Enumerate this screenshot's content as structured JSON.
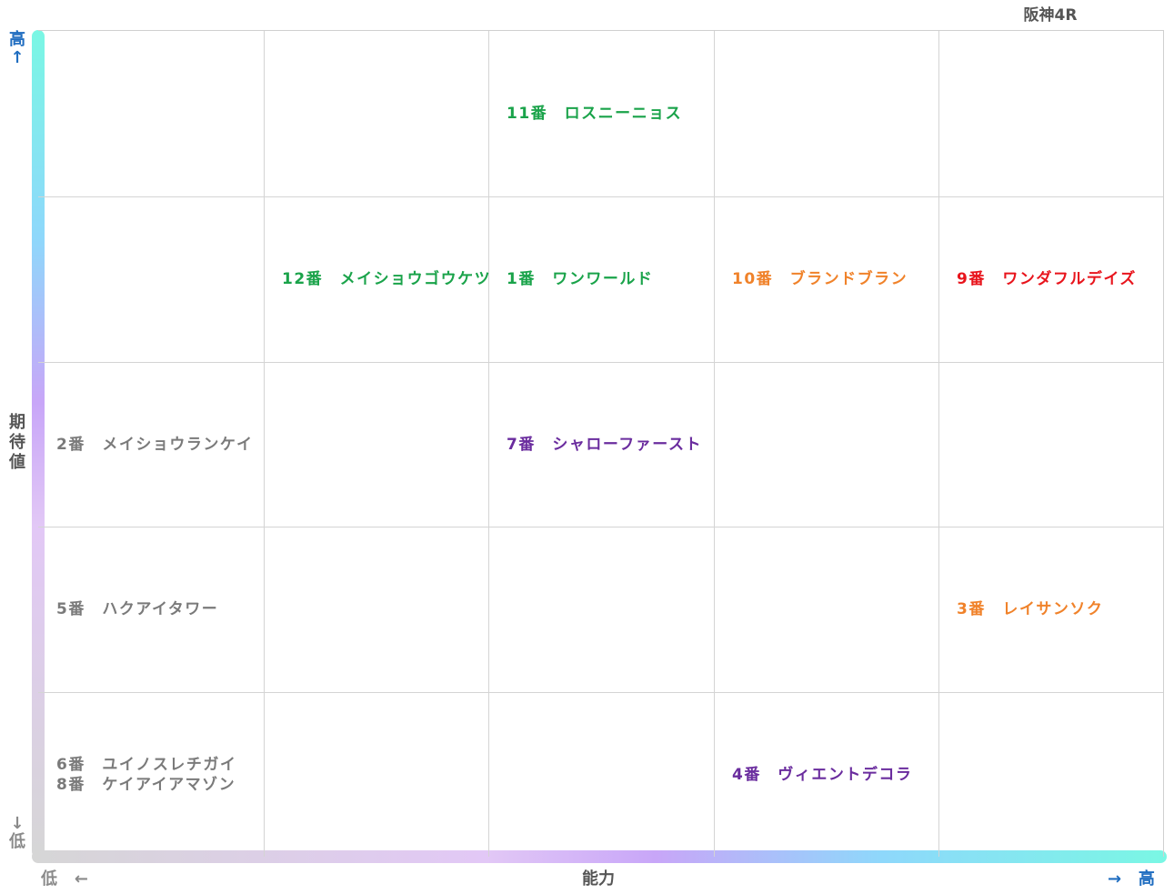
{
  "title": "阪神4R",
  "axes": {
    "y_label": "期待値",
    "y_high": "高",
    "y_high_arrow": "↑",
    "y_low_arrow": "↓",
    "y_low": "低",
    "x_label": "能力",
    "x_low": "低",
    "x_low_arrow": "←",
    "x_high_arrow": "→",
    "x_high": "高"
  },
  "chart_data": {
    "type": "table",
    "columns": 5,
    "rows": 5,
    "x_axis": "能力",
    "y_axis": "期待値",
    "colors": {
      "green": "#1aa34a",
      "orange": "#f0822a",
      "red": "#e8141c",
      "purple": "#6a2c9e",
      "gray": "#7a7a7a"
    },
    "entries": [
      {
        "ability": 3,
        "expectation": 5,
        "color": "green",
        "lines": [
          "11番　ロスニーニョス"
        ]
      },
      {
        "ability": 2,
        "expectation": 4,
        "color": "green",
        "lines": [
          "12番　メイショウゴウケツ"
        ]
      },
      {
        "ability": 3,
        "expectation": 4,
        "color": "green",
        "lines": [
          "1番　ワンワールド"
        ]
      },
      {
        "ability": 4,
        "expectation": 4,
        "color": "orange",
        "lines": [
          "10番　ブランドブラン"
        ]
      },
      {
        "ability": 5,
        "expectation": 4,
        "color": "red",
        "lines": [
          "9番　ワンダフルデイズ"
        ]
      },
      {
        "ability": 1,
        "expectation": 3,
        "color": "gray",
        "lines": [
          "2番　メイショウランケイ"
        ]
      },
      {
        "ability": 3,
        "expectation": 3,
        "color": "purple",
        "lines": [
          "7番　シャローファースト"
        ]
      },
      {
        "ability": 1,
        "expectation": 2,
        "color": "gray",
        "lines": [
          "5番　ハクアイタワー"
        ]
      },
      {
        "ability": 5,
        "expectation": 2,
        "color": "orange",
        "lines": [
          "3番　レイサンソク"
        ]
      },
      {
        "ability": 1,
        "expectation": 1,
        "color": "gray",
        "lines": [
          "6番　ユイノスレチガイ",
          "8番　ケイアイアマゾン"
        ]
      },
      {
        "ability": 4,
        "expectation": 1,
        "color": "purple",
        "lines": [
          "4番　ヴィエントデコラ"
        ]
      }
    ]
  }
}
